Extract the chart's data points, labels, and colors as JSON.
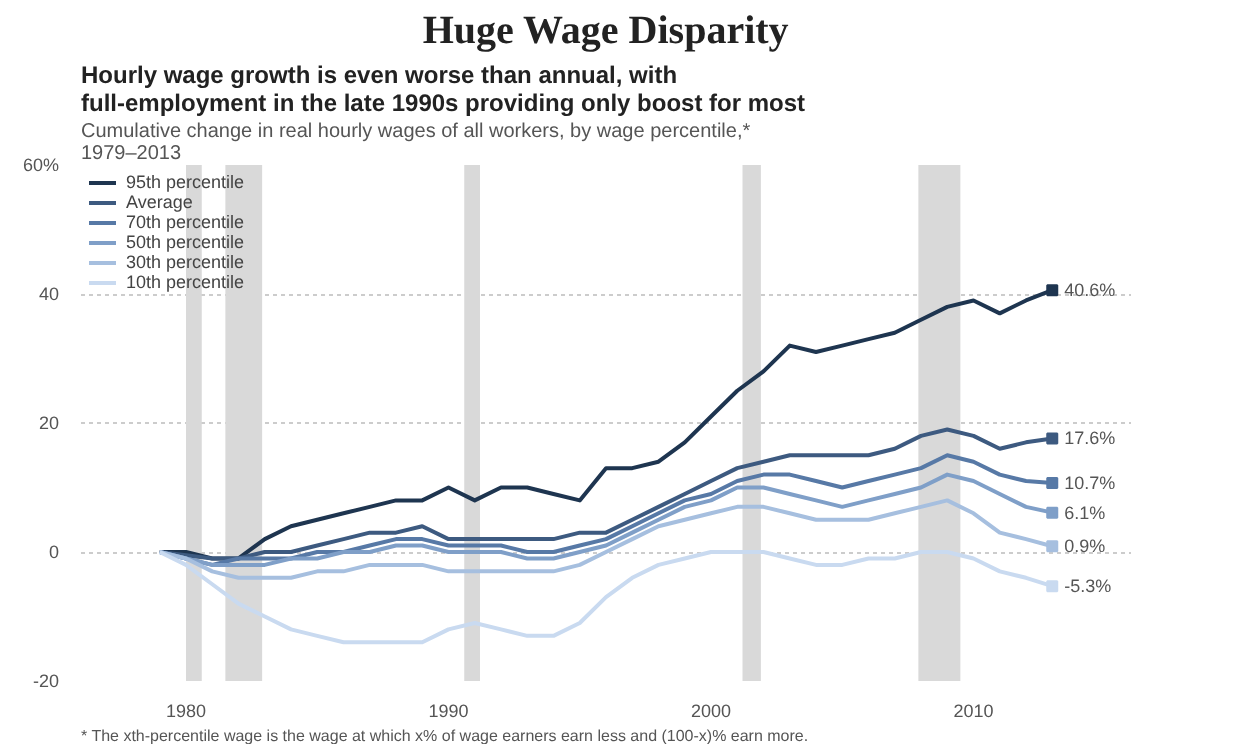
{
  "chart_data": {
    "type": "line",
    "title": "Hourly wage growth is even worse than annual, with full-employment in the late 1990s providing only boost for most",
    "subtitle": "Cumulative change in real hourly wages of all workers, by wage percentile,* 1979–2013",
    "annotations": [
      "Huge Wage Disparity",
      "* The xth-percentile wage is the wage at which x% of wage earners earn less and (100-x)% earn more."
    ],
    "x": [
      1979,
      1980,
      1981,
      1982,
      1983,
      1984,
      1985,
      1986,
      1987,
      1988,
      1989,
      1990,
      1991,
      1992,
      1993,
      1994,
      1995,
      1996,
      1997,
      1998,
      1999,
      2000,
      2001,
      2002,
      2003,
      2004,
      2005,
      2006,
      2007,
      2008,
      2009,
      2010,
      2011,
      2012,
      2013
    ],
    "xlim": [
      1976,
      2016
    ],
    "xticks": [
      1980,
      1990,
      2000,
      2010
    ],
    "ylim": [
      -20,
      60
    ],
    "yticks": [
      {
        "value": -20,
        "label": "-20"
      },
      {
        "value": 0,
        "label": "0"
      },
      {
        "value": 20,
        "label": "20"
      },
      {
        "value": 40,
        "label": "40"
      },
      {
        "value": 60,
        "label": "60%"
      }
    ],
    "grid": "y",
    "legend": "top left",
    "line_style": "solid",
    "marker": "none",
    "bands": [
      {
        "axis": "x",
        "from": 1980.0,
        "to": 1980.6,
        "color": "#d9d9d9"
      },
      {
        "axis": "x",
        "from": 1981.5,
        "to": 1982.9,
        "color": "#d9d9d9"
      },
      {
        "axis": "x",
        "from": 1990.6,
        "to": 1991.2,
        "color": "#d9d9d9"
      },
      {
        "axis": "x",
        "from": 2001.2,
        "to": 2001.9,
        "color": "#d9d9d9"
      },
      {
        "axis": "x",
        "from": 2007.9,
        "to": 2009.5,
        "color": "#d9d9d9"
      }
    ],
    "series": [
      {
        "name": "95th percentile",
        "color": "#1e3550",
        "values": [
          0,
          0,
          -1,
          -1,
          2,
          4,
          5,
          6,
          7,
          8,
          8,
          10,
          8,
          10,
          10,
          9,
          8,
          13,
          13,
          14,
          17,
          21,
          25,
          28,
          32,
          31,
          32,
          33,
          34,
          36,
          38,
          39,
          37,
          39,
          40.6
        ],
        "value_labels": [
          null,
          null,
          null,
          null,
          null,
          null,
          null,
          null,
          null,
          null,
          null,
          null,
          null,
          null,
          null,
          null,
          null,
          null,
          null,
          null,
          null,
          null,
          null,
          null,
          null,
          null,
          null,
          null,
          null,
          null,
          null,
          null,
          null,
          null,
          "40.6%"
        ]
      },
      {
        "name": "Average",
        "color": "#3d5a80",
        "values": [
          0,
          -0.5,
          -1,
          -1,
          0,
          0,
          1,
          2,
          3,
          3,
          4,
          2,
          2,
          2,
          2,
          2,
          3,
          3,
          5,
          7,
          9,
          11,
          13,
          14,
          15,
          15,
          15,
          15,
          16,
          18,
          19,
          18,
          16,
          17,
          17.6
        ],
        "value_labels": [
          null,
          null,
          null,
          null,
          null,
          null,
          null,
          null,
          null,
          null,
          null,
          null,
          null,
          null,
          null,
          null,
          null,
          null,
          null,
          null,
          null,
          null,
          null,
          null,
          null,
          null,
          null,
          null,
          null,
          null,
          null,
          null,
          null,
          null,
          "17.6%"
        ]
      },
      {
        "name": "70th percentile",
        "color": "#5779a6",
        "values": [
          0,
          -1,
          -2,
          -1,
          -1,
          -1,
          0,
          0,
          1,
          2,
          2,
          1,
          1,
          1,
          0,
          0,
          1,
          2,
          4,
          6,
          8,
          9,
          11,
          12,
          12,
          11,
          10,
          11,
          12,
          13,
          15,
          14,
          12,
          11,
          10.7
        ],
        "value_labels": [
          null,
          null,
          null,
          null,
          null,
          null,
          null,
          null,
          null,
          null,
          null,
          null,
          null,
          null,
          null,
          null,
          null,
          null,
          null,
          null,
          null,
          null,
          null,
          null,
          null,
          null,
          null,
          null,
          null,
          null,
          null,
          null,
          null,
          null,
          "10.7%"
        ]
      },
      {
        "name": "50th percentile",
        "color": "#7f9fc8",
        "values": [
          0,
          -1,
          -2,
          -2,
          -2,
          -1,
          -1,
          0,
          0,
          1,
          1,
          0,
          0,
          0,
          -1,
          -1,
          0,
          1,
          3,
          5,
          7,
          8,
          10,
          10,
          9,
          8,
          7,
          8,
          9,
          10,
          12,
          11,
          9,
          7,
          6.1
        ],
        "value_labels": [
          null,
          null,
          null,
          null,
          null,
          null,
          null,
          null,
          null,
          null,
          null,
          null,
          null,
          null,
          null,
          null,
          null,
          null,
          null,
          null,
          null,
          null,
          null,
          null,
          null,
          null,
          null,
          null,
          null,
          null,
          null,
          null,
          null,
          null,
          "6.1%"
        ]
      },
      {
        "name": "30th percentile",
        "color": "#a6bfdf",
        "values": [
          0,
          -1,
          -3,
          -4,
          -4,
          -4,
          -3,
          -3,
          -2,
          -2,
          -2,
          -3,
          -3,
          -3,
          -3,
          -3,
          -2,
          0,
          2,
          4,
          5,
          6,
          7,
          7,
          6,
          5,
          5,
          5,
          6,
          7,
          8,
          6,
          3,
          2,
          0.9
        ],
        "value_labels": [
          null,
          null,
          null,
          null,
          null,
          null,
          null,
          null,
          null,
          null,
          null,
          null,
          null,
          null,
          null,
          null,
          null,
          null,
          null,
          null,
          null,
          null,
          null,
          null,
          null,
          null,
          null,
          null,
          null,
          null,
          null,
          null,
          null,
          null,
          "0.9%"
        ]
      },
      {
        "name": "10th percentile",
        "color": "#c9daf0",
        "values": [
          0,
          -2,
          -5,
          -8,
          -10,
          -12,
          -13,
          -14,
          -14,
          -14,
          -14,
          -12,
          -11,
          -12,
          -13,
          -13,
          -11,
          -7,
          -4,
          -2,
          -1,
          0,
          0,
          0,
          -1,
          -2,
          -2,
          -1,
          -1,
          0,
          0,
          -1,
          -3,
          -4,
          -5.3
        ],
        "value_labels": [
          null,
          null,
          null,
          null,
          null,
          null,
          null,
          null,
          null,
          null,
          null,
          null,
          null,
          null,
          null,
          null,
          null,
          null,
          null,
          null,
          null,
          null,
          null,
          null,
          null,
          null,
          null,
          null,
          null,
          null,
          null,
          null,
          null,
          null,
          "-5.3%"
        ]
      }
    ]
  }
}
